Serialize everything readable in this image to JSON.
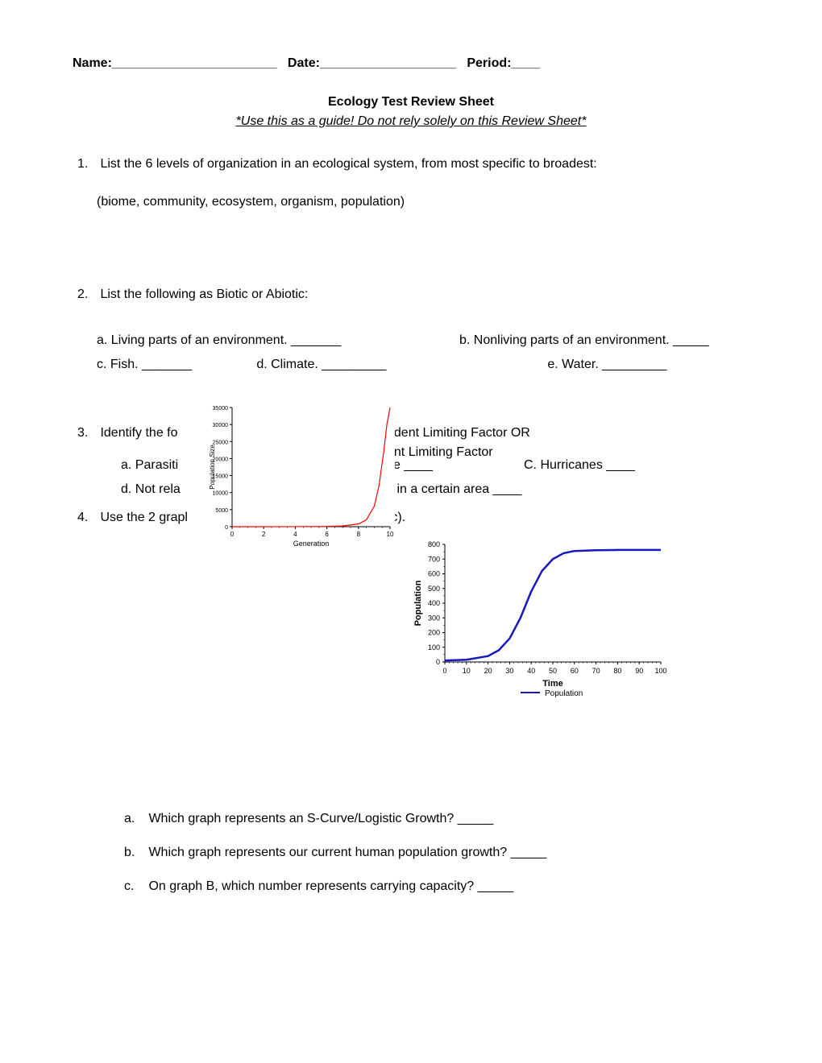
{
  "header": {
    "name_label": "Name:",
    "name_blank": " _______________________",
    "date_label": "Date:",
    "date_blank": " ___________________",
    "period_label": "Period:",
    "period_blank": " ____"
  },
  "title": "Ecology Test Review Sheet",
  "subtitle": "*Use this as a guide! Do not rely solely on this Review Sheet*",
  "q1": {
    "num": "1.",
    "text": "List the 6 levels of organization in an ecological system, from most specific to broadest:",
    "hint": "(biome, community, ecosystem, organism, population)"
  },
  "q2": {
    "num": "2.",
    "text": "List the following as Biotic or Abiotic:",
    "a": {
      "letter": "a.",
      "text": "Living parts of an environment. _______"
    },
    "b": {
      "letter": "b.",
      "text": "Nonliving parts of an environment. _____"
    },
    "c": {
      "letter": "c.",
      "text": "Fish. _______"
    },
    "d": {
      "letter": "d.",
      "text": "Climate. _________"
    },
    "e": {
      "letter": "e.",
      "text": "Water. _________"
    }
  },
  "q3": {
    "num": "3.",
    "text_pre": "Identify the fo",
    "text_frag1": "ndent Limiting Factor  OR",
    "text_frag2": "ent Limiting Factor",
    "a": {
      "letter": "a.",
      "text": "Parasiti"
    },
    "b": {
      "text": "se ____"
    },
    "c": {
      "letter": "C.",
      "text": "Hurricanes ____"
    },
    "d": {
      "letter": "d.",
      "text": "Not rela"
    },
    "d2": {
      "text": "s in a certain area ____"
    }
  },
  "q4": {
    "num": "4.",
    "text": "Use the 2 grapl",
    "frag": "-c)."
  },
  "chart1": {
    "type": "line",
    "ylabel": "Population Size",
    "xlabel": "Generation",
    "yticks": [
      "0",
      "5000",
      "10000",
      "15000",
      "20000",
      "25000",
      "30000",
      "35000"
    ],
    "xticks": [
      "0",
      "2",
      "4",
      "6",
      "8",
      "10"
    ],
    "line_color": "#ff0000",
    "bg": "#ffffff",
    "axis_color": "#000000",
    "label_fontsize": 9,
    "curve": [
      [
        0,
        0
      ],
      [
        2,
        5
      ],
      [
        4,
        15
      ],
      [
        6,
        60
      ],
      [
        7,
        200
      ],
      [
        8,
        800
      ],
      [
        8.5,
        2000
      ],
      [
        9,
        6000
      ],
      [
        9.3,
        12000
      ],
      [
        9.6,
        22000
      ],
      [
        9.8,
        30000
      ],
      [
        10,
        35000
      ]
    ]
  },
  "chart2": {
    "type": "line",
    "ylabel": "Population",
    "xlabel": "Time",
    "yticks": [
      "0",
      "100",
      "200",
      "300",
      "400",
      "500",
      "600",
      "700",
      "800"
    ],
    "xticks": [
      "0",
      "10",
      "20",
      "30",
      "40",
      "50",
      "60",
      "70",
      "80",
      "90",
      "100"
    ],
    "line_color": "#1818c0",
    "bg": "#ffffff",
    "axis_color": "#000000",
    "legend_label": "Population",
    "curve": [
      [
        0,
        10
      ],
      [
        10,
        15
      ],
      [
        20,
        40
      ],
      [
        25,
        80
      ],
      [
        30,
        160
      ],
      [
        35,
        300
      ],
      [
        40,
        480
      ],
      [
        45,
        620
      ],
      [
        50,
        700
      ],
      [
        55,
        740
      ],
      [
        60,
        755
      ],
      [
        70,
        760
      ],
      [
        80,
        762
      ],
      [
        90,
        762
      ],
      [
        100,
        762
      ]
    ]
  },
  "q4sub": {
    "a": {
      "letter": "a.",
      "text": "Which graph represents an S-Curve/Logistic Growth? _____"
    },
    "b": {
      "letter": "b.",
      "text": "Which graph represents our current human population growth? _____"
    },
    "c": {
      "letter": "c.",
      "text": "On graph B, which number represents carrying capacity? _____"
    }
  }
}
